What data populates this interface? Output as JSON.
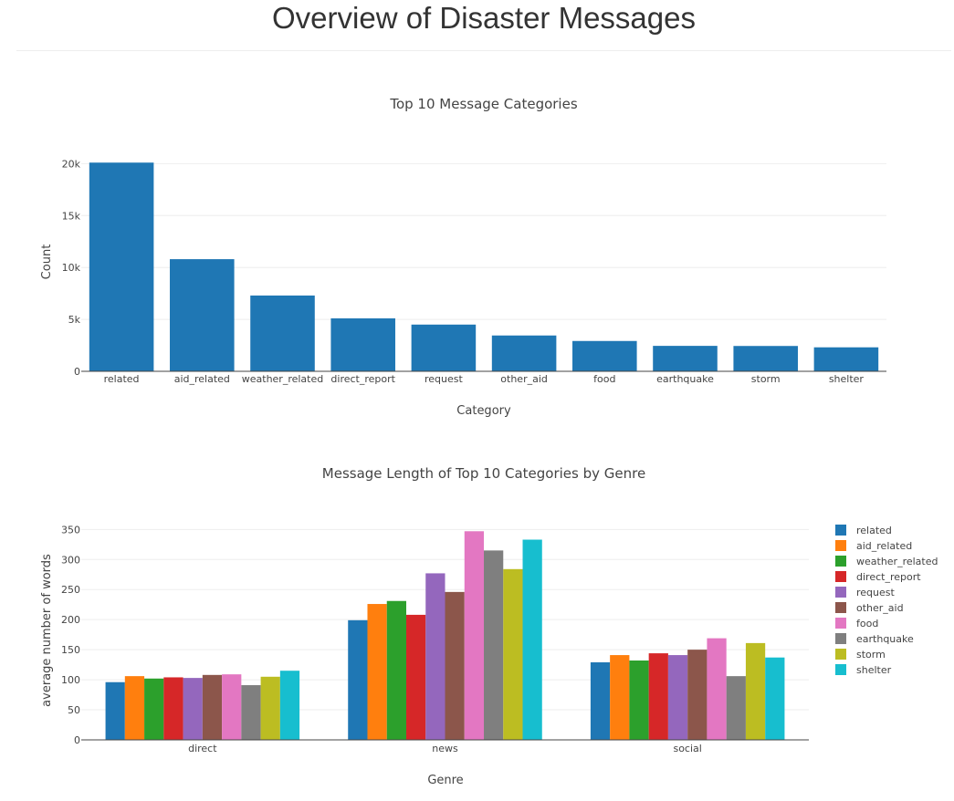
{
  "page": {
    "title": "Overview of Disaster Messages"
  },
  "chart_data": [
    {
      "type": "bar",
      "title": "Top 10 Message Categories",
      "xlabel": "Category",
      "ylabel": "Count",
      "categories": [
        "related",
        "aid_related",
        "weather_related",
        "direct_report",
        "request",
        "other_aid",
        "food",
        "earthquake",
        "storm",
        "shelter"
      ],
      "values": [
        20100,
        10800,
        7300,
        5100,
        4500,
        3450,
        2920,
        2450,
        2440,
        2310
      ],
      "ylim": [
        0,
        21000
      ],
      "yticks": [
        0,
        5000,
        10000,
        15000,
        20000
      ],
      "ytick_labels": [
        "0",
        "5k",
        "10k",
        "15k",
        "20k"
      ],
      "color": "#1f77b4",
      "grid": true,
      "legend": "none"
    },
    {
      "type": "bar",
      "title": "Message Length of Top 10 Categories by Genre",
      "xlabel": "Genre",
      "ylabel": "average number of words",
      "categories": [
        "direct",
        "news",
        "social"
      ],
      "ylim": [
        0,
        352
      ],
      "yticks": [
        0,
        50,
        100,
        150,
        200,
        250,
        300,
        350
      ],
      "grid": true,
      "legend": "right",
      "series": [
        {
          "name": "related",
          "color": "#1f77b4",
          "values": [
            96,
            199,
            129
          ]
        },
        {
          "name": "aid_related",
          "color": "#ff7f0e",
          "values": [
            106,
            226,
            141
          ]
        },
        {
          "name": "weather_related",
          "color": "#2ca02c",
          "values": [
            102,
            231,
            132
          ]
        },
        {
          "name": "direct_report",
          "color": "#d62728",
          "values": [
            104,
            208,
            144
          ]
        },
        {
          "name": "request",
          "color": "#9467bd",
          "values": [
            103,
            277,
            141
          ]
        },
        {
          "name": "other_aid",
          "color": "#8c564b",
          "values": [
            108,
            246,
            150
          ]
        },
        {
          "name": "food",
          "color": "#e377c2",
          "values": [
            109,
            347,
            169
          ]
        },
        {
          "name": "earthquake",
          "color": "#7f7f7f",
          "values": [
            91,
            315,
            106
          ]
        },
        {
          "name": "storm",
          "color": "#bcbd22",
          "values": [
            105,
            284,
            161
          ]
        },
        {
          "name": "shelter",
          "color": "#17becf",
          "values": [
            115,
            333,
            137
          ]
        }
      ]
    }
  ]
}
